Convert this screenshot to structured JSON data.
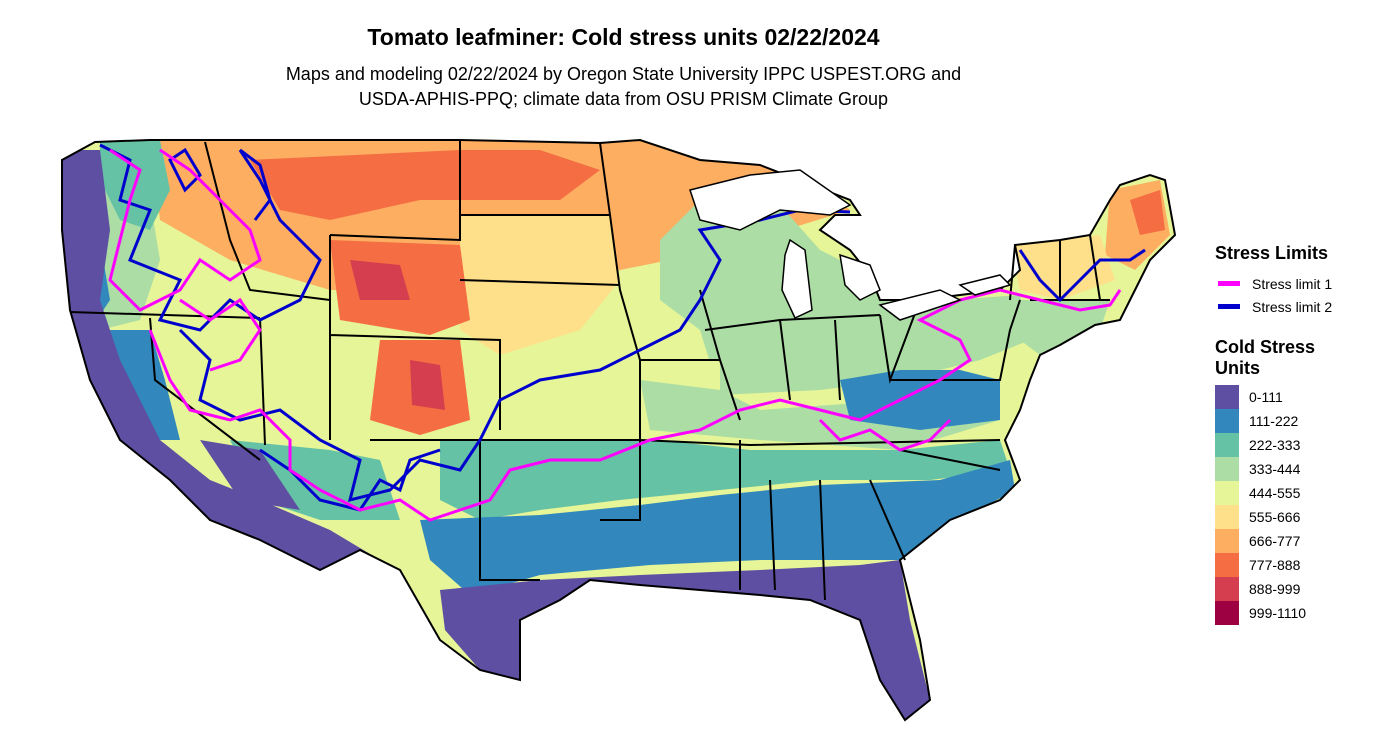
{
  "title": "Tomato leafminer: Cold stress units 02/22/2024",
  "subtitle_line1": "Maps and modeling 02/22/2024 by Oregon State University IPPC USPEST.ORG and",
  "subtitle_line2": "USDA-APHIS-PPQ; climate data from OSU PRISM Climate Group",
  "legend": {
    "stress_title": "Stress Limits",
    "stress_items": [
      {
        "label": "Stress limit 1",
        "color": "#ff00ff"
      },
      {
        "label": "Stress limit 2",
        "color": "#0000cd"
      }
    ],
    "cold_title_line1": "Cold Stress",
    "cold_title_line2": "Units",
    "classes": [
      {
        "label": "0-111",
        "color": "#5e4fa2"
      },
      {
        "label": "111-222",
        "color": "#3288bd"
      },
      {
        "label": "222-333",
        "color": "#66c2a5"
      },
      {
        "label": "333-444",
        "color": "#abdda4"
      },
      {
        "label": "444-555",
        "color": "#e6f598"
      },
      {
        "label": "555-666",
        "color": "#fee08b"
      },
      {
        "label": "666-777",
        "color": "#fdae61"
      },
      {
        "label": "777-888",
        "color": "#f46d43"
      },
      {
        "label": "888-999",
        "color": "#d53e4f"
      },
      {
        "label": "999-1110",
        "color": "#9e0142"
      }
    ]
  }
}
